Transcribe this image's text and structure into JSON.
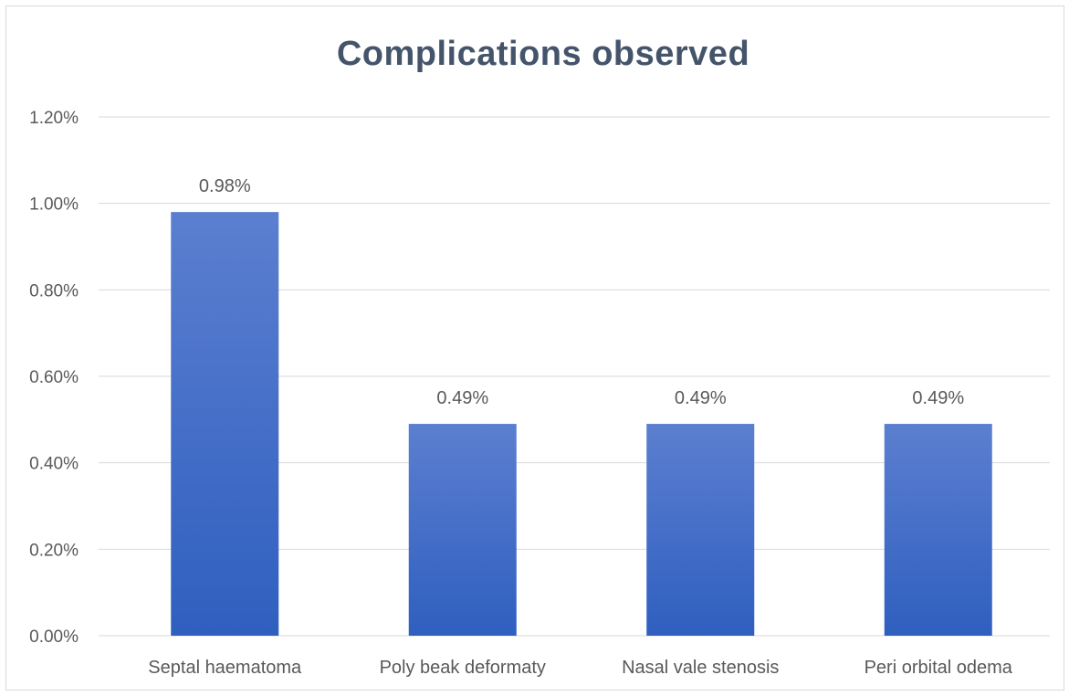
{
  "chart_data": {
    "type": "bar",
    "title": "Complications  observed",
    "categories": [
      "Septal haematoma",
      "Poly beak deformaty",
      "Nasal vale stenosis",
      "Peri orbital odema"
    ],
    "values": [
      0.98,
      0.49,
      0.49,
      0.49
    ],
    "data_labels": [
      "0.98%",
      "0.49%",
      "0.49%",
      "0.49%"
    ],
    "yticks": [
      0,
      0.2,
      0.4,
      0.6,
      0.8,
      1.0,
      1.2
    ],
    "ytick_labels": [
      "0.00%",
      "0.20%",
      "0.40%",
      "0.60%",
      "0.80%",
      "1.00%",
      "1.20%"
    ],
    "ylim": [
      0,
      1.2
    ],
    "grid": true,
    "legend": "none",
    "colors": {
      "bar_top": "#5b7fd0",
      "bar_bottom": "#2f5fbf",
      "grid": "#d9d9d9",
      "text": "#595959",
      "title": "#44546a"
    }
  }
}
